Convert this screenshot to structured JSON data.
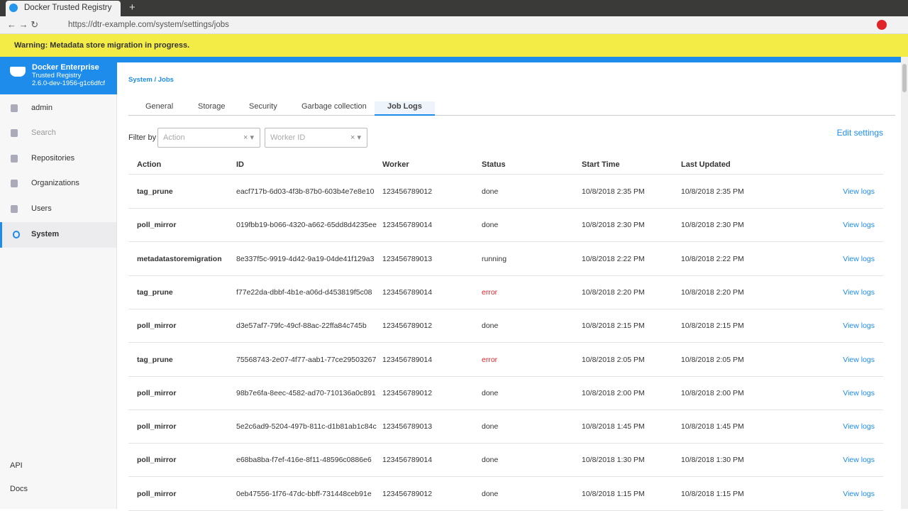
{
  "browser": {
    "tab_title": "Docker Trusted Registry",
    "url": "https://dtr-example.com/system/settings/jobs"
  },
  "banner": {
    "text": "Warning: Metadata store migration in progress."
  },
  "sidebar": {
    "brand": "Docker Enterprise",
    "product": "Trusted Registry",
    "version": "2.6.0-dev-1956-g1c6dfcf",
    "nav": [
      "admin",
      "Search",
      "Repositories",
      "Organizations",
      "Users",
      "System"
    ],
    "active": 5,
    "footer": [
      "API",
      "Docs"
    ]
  },
  "breadcrumb": {
    "parent": "System",
    "separator": "/",
    "current": "Jobs"
  },
  "tabs": {
    "items": [
      "General",
      "Storage",
      "Security",
      "Garbage collection",
      "Job Logs"
    ],
    "active": 4
  },
  "filters": {
    "label": "Filter by",
    "action_placeholder": "Action",
    "worker_placeholder": "Worker ID",
    "edit_link": "Edit settings"
  },
  "table": {
    "columns": [
      "Action",
      "ID",
      "Worker",
      "Status",
      "Start Time",
      "Last Updated"
    ],
    "rows": [
      {
        "action": "tag_prune",
        "id": "eacf717b-6d03-4f3b-87b0-603b4e7e8e10",
        "worker": "123456789012",
        "status": "done",
        "status_color": "#333333",
        "start_time": "10/8/2018 2:35 PM",
        "last_updated": "10/8/2018 2:35 PM",
        "link": "View logs"
      },
      {
        "action": "poll_mirror",
        "id": "019fbb19-b066-4320-a662-65dd8d4235ee",
        "worker": "123456789014",
        "status": "done",
        "status_color": "#333333",
        "start_time": "10/8/2018 2:30 PM",
        "last_updated": "10/8/2018 2:30 PM",
        "link": "View logs"
      },
      {
        "action": "metadatastoremigration",
        "id": "8e337f5c-9919-4d42-9a19-04de41f129a3",
        "worker": "123456789013",
        "status": "running",
        "status_color": "#333333",
        "start_time": "10/8/2018 2:22 PM",
        "last_updated": "10/8/2018 2:22 PM",
        "link": "View logs"
      },
      {
        "action": "tag_prune",
        "id": "f77e22da-dbbf-4b1e-a06d-d453819f5c08",
        "worker": "123456789014",
        "status": "error",
        "status_color": "#e0242a",
        "start_time": "10/8/2018 2:20 PM",
        "last_updated": "10/8/2018 2:20 PM",
        "link": "View logs"
      },
      {
        "action": "poll_mirror",
        "id": "d3e57af7-79fc-49cf-88ac-22ffa84c745b",
        "worker": "123456789012",
        "status": "done",
        "status_color": "#333333",
        "start_time": "10/8/2018 2:15 PM",
        "last_updated": "10/8/2018 2:15 PM",
        "link": "View logs"
      },
      {
        "action": "tag_prune",
        "id": "75568743-2e07-4f77-aab1-77ce29503267",
        "worker": "123456789014",
        "status": "error",
        "status_color": "#e0242a",
        "start_time": "10/8/2018 2:05 PM",
        "last_updated": "10/8/2018 2:05 PM",
        "link": "View logs"
      },
      {
        "action": "poll_mirror",
        "id": "98b7e6fa-8eec-4582-ad70-710136a0c891",
        "worker": "123456789012",
        "status": "done",
        "status_color": "#333333",
        "start_time": "10/8/2018 2:00 PM",
        "last_updated": "10/8/2018 2:00 PM",
        "link": "View logs"
      },
      {
        "action": "poll_mirror",
        "id": "5e2c6ad9-5204-497b-811c-d1b81ab1c84c",
        "worker": "123456789013",
        "status": "done",
        "status_color": "#333333",
        "start_time": "10/8/2018 1:45 PM",
        "last_updated": "10/8/2018 1:45 PM",
        "link": "View logs"
      },
      {
        "action": "poll_mirror",
        "id": "e68ba8ba-f7ef-416e-8f11-48596c0886e6",
        "worker": "123456789014",
        "status": "done",
        "status_color": "#333333",
        "start_time": "10/8/2018 1:30 PM",
        "last_updated": "10/8/2018 1:30 PM",
        "link": "View logs"
      },
      {
        "action": "poll_mirror",
        "id": "0eb47556-1f76-47dc-bbff-731448ceb91e",
        "worker": "123456789012",
        "status": "done",
        "status_color": "#333333",
        "start_time": "10/8/2018 1:15 PM",
        "last_updated": "10/8/2018 1:15 PM",
        "link": "View logs"
      }
    ]
  }
}
